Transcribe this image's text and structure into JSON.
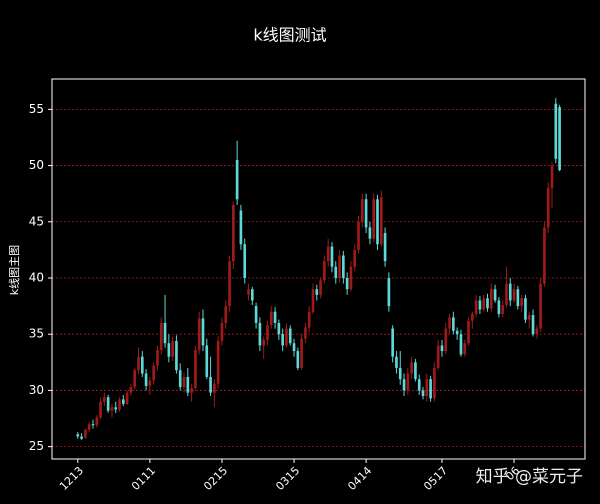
{
  "chart_data": {
    "type": "candlestick",
    "title": "k线图测试",
    "y_label": "k线图主图",
    "watermark": "知乎 @菜元子",
    "ylim": [
      23.9,
      57.7
    ],
    "yticks": [
      25,
      30,
      35,
      40,
      45,
      50,
      55
    ],
    "grid": true,
    "up_color": "#a01a1a",
    "down_color": "#5fd8d8",
    "categories": [
      "1213",
      null,
      null,
      null,
      null,
      null,
      null,
      null,
      null,
      null,
      null,
      null,
      null,
      null,
      null,
      null,
      null,
      null,
      null,
      "0111",
      null,
      null,
      null,
      null,
      null,
      null,
      null,
      null,
      null,
      null,
      null,
      null,
      null,
      null,
      null,
      null,
      null,
      null,
      "0215",
      null,
      null,
      null,
      null,
      null,
      null,
      null,
      null,
      null,
      null,
      null,
      null,
      null,
      null,
      null,
      null,
      null,
      null,
      "0315",
      null,
      null,
      null,
      null,
      null,
      null,
      null,
      null,
      null,
      null,
      null,
      null,
      null,
      null,
      null,
      null,
      null,
      null,
      "0414",
      null,
      null,
      null,
      null,
      null,
      null,
      null,
      null,
      null,
      null,
      null,
      null,
      null,
      null,
      null,
      null,
      null,
      null,
      null,
      "0517",
      null,
      null,
      null,
      null,
      null,
      null,
      null,
      null,
      null,
      null,
      null,
      null,
      null,
      null,
      null,
      null,
      null,
      null,
      "06",
      null,
      null,
      null,
      null,
      null,
      null,
      null,
      null,
      null,
      null,
      null,
      null
    ],
    "values": [
      [
        26.1,
        26.3,
        25.7,
        25.9
      ],
      [
        25.9,
        26.2,
        25.6,
        25.7
      ],
      [
        25.8,
        26.6,
        25.7,
        26.5
      ],
      [
        26.5,
        27.2,
        26.3,
        27.0
      ],
      [
        27.0,
        27.4,
        26.6,
        26.9
      ],
      [
        26.9,
        27.8,
        26.7,
        27.6
      ],
      [
        27.6,
        29.4,
        27.4,
        29.0
      ],
      [
        29.0,
        29.8,
        28.6,
        29.4
      ],
      [
        29.4,
        29.6,
        28.0,
        28.2
      ],
      [
        28.2,
        28.8,
        27.6,
        28.5
      ],
      [
        28.5,
        29.0,
        28.0,
        28.3
      ],
      [
        28.3,
        29.4,
        28.1,
        29.2
      ],
      [
        29.2,
        29.6,
        28.6,
        28.8
      ],
      [
        28.8,
        30.0,
        28.7,
        29.8
      ],
      [
        29.8,
        30.6,
        29.5,
        30.3
      ],
      [
        30.3,
        32.0,
        30.1,
        31.8
      ],
      [
        31.8,
        33.8,
        31.5,
        33.0
      ],
      [
        33.0,
        33.5,
        31.2,
        31.5
      ],
      [
        31.5,
        31.9,
        30.0,
        30.4
      ],
      [
        30.4,
        31.2,
        29.6,
        30.9
      ],
      [
        30.9,
        32.5,
        30.5,
        32.2
      ],
      [
        32.2,
        34.0,
        31.8,
        33.6
      ],
      [
        33.6,
        36.5,
        33.2,
        36.0
      ],
      [
        36.0,
        38.5,
        33.8,
        34.2
      ],
      [
        34.2,
        35.0,
        32.5,
        33.0
      ],
      [
        33.0,
        34.8,
        32.6,
        34.4
      ],
      [
        34.4,
        34.9,
        31.5,
        31.8
      ],
      [
        31.8,
        32.4,
        30.0,
        30.3
      ],
      [
        30.3,
        31.6,
        29.8,
        31.2
      ],
      [
        31.2,
        32.0,
        29.5,
        29.8
      ],
      [
        29.8,
        30.6,
        29.0,
        30.2
      ],
      [
        30.2,
        34.0,
        30.0,
        33.6
      ],
      [
        33.6,
        37.0,
        33.2,
        36.4
      ],
      [
        36.4,
        37.2,
        33.5,
        34.0
      ],
      [
        34.0,
        34.6,
        31.0,
        31.2
      ],
      [
        31.2,
        33.0,
        29.5,
        29.8
      ],
      [
        29.8,
        31.0,
        28.5,
        30.6
      ],
      [
        30.6,
        34.8,
        30.2,
        34.4
      ],
      [
        34.4,
        36.5,
        34.0,
        36.0
      ],
      [
        36.0,
        38.0,
        35.5,
        37.5
      ],
      [
        37.5,
        42.0,
        37.0,
        41.5
      ],
      [
        41.5,
        46.8,
        40.8,
        46.5
      ],
      [
        50.5,
        52.2,
        46.5,
        47.0
      ],
      [
        46.0,
        46.5,
        42.5,
        43.0
      ],
      [
        43.0,
        43.5,
        39.5,
        40.0
      ],
      [
        38.5,
        39.5,
        38.0,
        39.0
      ],
      [
        39.0,
        39.2,
        37.6,
        38.0
      ],
      [
        37.5,
        37.8,
        35.5,
        36.0
      ],
      [
        36.0,
        36.5,
        33.5,
        34.0
      ],
      [
        34.0,
        34.8,
        32.8,
        34.5
      ],
      [
        34.5,
        36.2,
        34.0,
        35.8
      ],
      [
        35.8,
        37.5,
        35.5,
        37.0
      ],
      [
        37.0,
        37.4,
        35.5,
        36.0
      ],
      [
        36.0,
        36.3,
        34.5,
        35.0
      ],
      [
        35.0,
        35.5,
        33.5,
        34.0
      ],
      [
        34.0,
        36.0,
        33.8,
        35.5
      ],
      [
        35.5,
        35.8,
        34.0,
        34.2
      ],
      [
        34.2,
        34.6,
        33.0,
        33.5
      ],
      [
        33.5,
        33.8,
        31.8,
        32.0
      ],
      [
        32.0,
        35.0,
        31.8,
        34.6
      ],
      [
        34.6,
        36.0,
        34.2,
        35.6
      ],
      [
        35.6,
        37.5,
        35.2,
        37.0
      ],
      [
        37.0,
        39.5,
        36.8,
        39.0
      ],
      [
        39.0,
        39.4,
        38.0,
        38.5
      ],
      [
        38.5,
        40.0,
        38.2,
        39.8
      ],
      [
        39.8,
        42.0,
        39.5,
        41.5
      ],
      [
        41.5,
        43.5,
        41.0,
        42.8
      ],
      [
        42.8,
        43.2,
        40.5,
        41.0
      ],
      [
        41.0,
        41.5,
        39.5,
        40.0
      ],
      [
        40.0,
        42.5,
        39.6,
        42.0
      ],
      [
        42.0,
        42.4,
        39.5,
        40.0
      ],
      [
        40.0,
        40.5,
        38.5,
        39.0
      ],
      [
        39.0,
        41.5,
        38.8,
        41.0
      ],
      [
        41.0,
        43.0,
        40.6,
        42.5
      ],
      [
        42.5,
        45.5,
        42.2,
        45.0
      ],
      [
        45.0,
        47.5,
        44.5,
        47.0
      ],
      [
        47.0,
        47.5,
        44.0,
        44.5
      ],
      [
        44.5,
        45.0,
        43.0,
        43.5
      ],
      [
        43.5,
        47.5,
        43.2,
        47.0
      ],
      [
        47.0,
        47.4,
        42.5,
        43.0
      ],
      [
        43.0,
        47.8,
        42.8,
        47.2
      ],
      [
        44.0,
        44.5,
        41.0,
        41.5
      ],
      [
        40.0,
        40.5,
        37.0,
        37.5
      ],
      [
        35.5,
        35.8,
        32.5,
        33.0
      ],
      [
        33.0,
        33.5,
        31.5,
        32.0
      ],
      [
        32.0,
        33.5,
        30.5,
        31.0
      ],
      [
        31.0,
        31.5,
        29.5,
        30.0
      ],
      [
        30.0,
        32.0,
        29.6,
        31.5
      ],
      [
        31.5,
        33.0,
        31.0,
        32.5
      ],
      [
        32.5,
        32.8,
        30.8,
        31.0
      ],
      [
        31.0,
        31.4,
        29.6,
        30.0
      ],
      [
        30.0,
        30.3,
        29.2,
        29.5
      ],
      [
        29.5,
        31.5,
        29.0,
        31.0
      ],
      [
        31.0,
        31.3,
        29.0,
        29.3
      ],
      [
        29.3,
        32.5,
        29.0,
        32.0
      ],
      [
        32.0,
        34.5,
        31.8,
        34.0
      ],
      [
        34.0,
        34.5,
        33.0,
        33.5
      ],
      [
        33.5,
        36.0,
        33.2,
        35.5
      ],
      [
        35.5,
        36.8,
        35.0,
        36.5
      ],
      [
        36.5,
        37.0,
        35.0,
        35.3
      ],
      [
        35.3,
        35.6,
        34.5,
        35.0
      ],
      [
        35.0,
        35.4,
        33.0,
        33.2
      ],
      [
        33.2,
        34.5,
        33.0,
        34.2
      ],
      [
        34.2,
        36.5,
        34.0,
        36.2
      ],
      [
        36.2,
        37.0,
        35.5,
        36.8
      ],
      [
        36.8,
        38.5,
        36.5,
        38.0
      ],
      [
        38.0,
        38.4,
        36.8,
        37.2
      ],
      [
        37.2,
        38.5,
        37.0,
        38.2
      ],
      [
        38.2,
        38.6,
        37.0,
        37.3
      ],
      [
        37.3,
        39.5,
        37.0,
        39.0
      ],
      [
        39.0,
        39.4,
        37.8,
        38.0
      ],
      [
        38.0,
        38.3,
        36.5,
        36.8
      ],
      [
        36.8,
        38.0,
        36.5,
        37.6
      ],
      [
        37.6,
        41.0,
        37.4,
        39.5
      ],
      [
        39.5,
        40.0,
        37.5,
        38.0
      ],
      [
        38.0,
        39.5,
        37.8,
        39.0
      ],
      [
        39.0,
        39.3,
        37.2,
        37.5
      ],
      [
        37.5,
        38.5,
        37.0,
        38.2
      ],
      [
        38.2,
        38.5,
        36.0,
        36.3
      ],
      [
        36.3,
        37.0,
        35.5,
        36.7
      ],
      [
        36.7,
        37.2,
        34.8,
        35.0
      ],
      [
        35.0,
        35.8,
        34.6,
        35.5
      ],
      [
        35.5,
        40.0,
        35.2,
        39.5
      ],
      [
        39.5,
        45.0,
        39.2,
        44.5
      ],
      [
        44.5,
        48.5,
        44.0,
        48.0
      ],
      [
        48.0,
        50.3,
        46.2,
        50.0
      ],
      [
        55.5,
        56.0,
        50.2,
        50.6
      ],
      [
        55.2,
        55.4,
        49.5,
        49.6
      ]
    ]
  }
}
